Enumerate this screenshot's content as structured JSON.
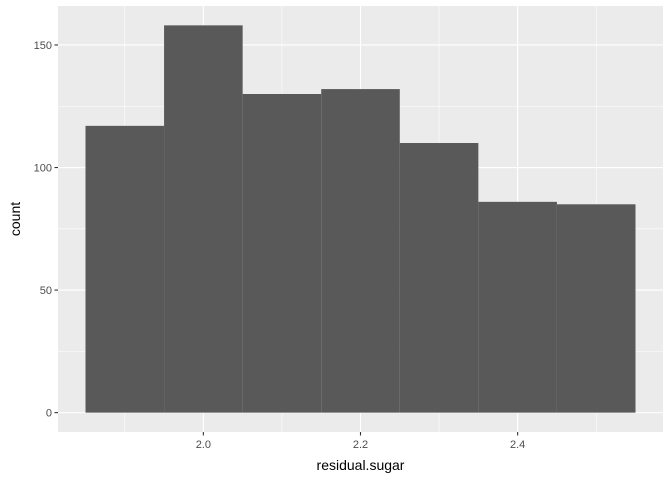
{
  "chart_data": {
    "type": "bar",
    "xlabel": "residual.sugar",
    "ylabel": "count",
    "x_ticks": [
      "2.0",
      "2.2",
      "2.4"
    ],
    "x_tick_values": [
      2.0,
      2.2,
      2.4
    ],
    "y_ticks": [
      "0",
      "50",
      "100",
      "150"
    ],
    "y_tick_values": [
      0,
      50,
      100,
      150
    ],
    "xlim": [
      1.815,
      2.585
    ],
    "ylim": [
      -7.9,
      165.9
    ],
    "bin_width": 0.1,
    "bins": [
      {
        "x_start": 1.85,
        "x_end": 1.95,
        "count": 117
      },
      {
        "x_start": 1.95,
        "x_end": 2.05,
        "count": 158
      },
      {
        "x_start": 2.05,
        "x_end": 2.15,
        "count": 130
      },
      {
        "x_start": 2.15,
        "x_end": 2.25,
        "count": 132
      },
      {
        "x_start": 2.25,
        "x_end": 2.35,
        "count": 110
      },
      {
        "x_start": 2.35,
        "x_end": 2.45,
        "count": 86
      },
      {
        "x_start": 2.45,
        "x_end": 2.55,
        "count": 85
      }
    ],
    "grid": true,
    "colors": {
      "panel_background": "#ebebeb",
      "grid_line": "#ffffff",
      "bar_fill": "#595959"
    }
  }
}
